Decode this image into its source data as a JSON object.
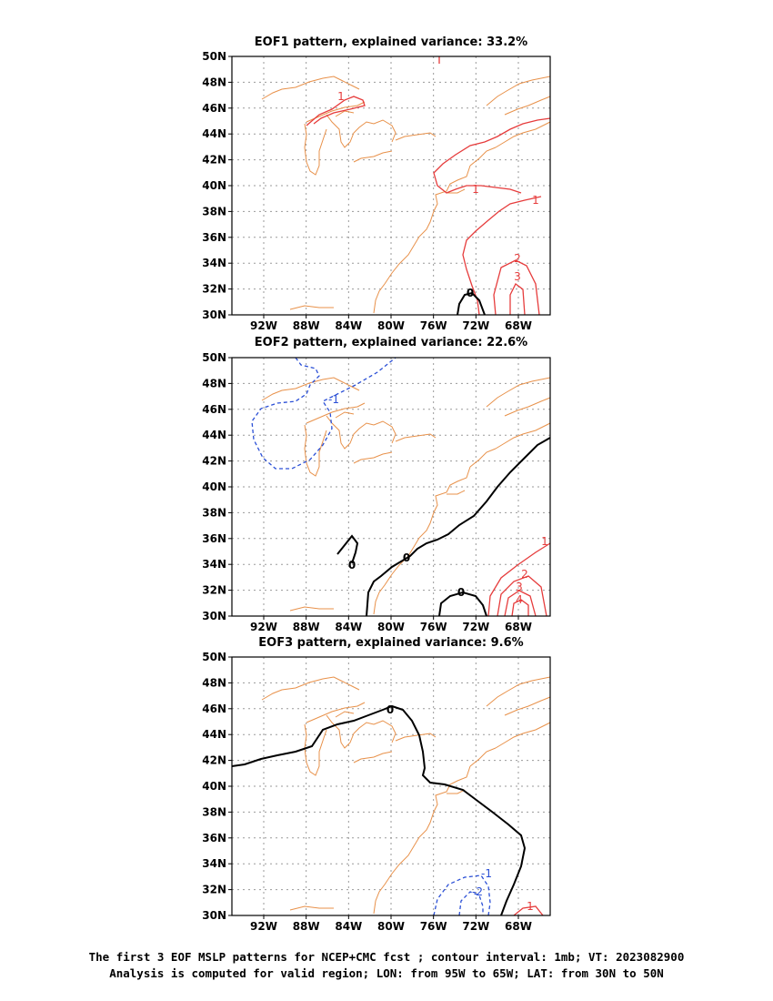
{
  "panels": [
    {
      "title": "EOF1 pattern, explained variance: 33.2%",
      "labels": [
        {
          "text": "1",
          "color": "#e63c3c"
        },
        {
          "text": "1",
          "color": "#e63c3c"
        },
        {
          "text": "1",
          "color": "#e63c3c"
        },
        {
          "text": "2",
          "color": "#e63c3c"
        },
        {
          "text": "3",
          "color": "#e63c3c"
        },
        {
          "text": "0",
          "color": "#000000"
        }
      ]
    },
    {
      "title": "EOF2 pattern, explained variance: 22.6%",
      "labels": [
        {
          "text": "-1",
          "color": "#2a4fd6"
        },
        {
          "text": "0",
          "color": "#000000"
        },
        {
          "text": "0",
          "color": "#000000"
        },
        {
          "text": "0",
          "color": "#000000"
        },
        {
          "text": "1",
          "color": "#e63c3c"
        },
        {
          "text": "2",
          "color": "#e63c3c"
        },
        {
          "text": "3",
          "color": "#e63c3c"
        },
        {
          "text": "4",
          "color": "#e63c3c"
        }
      ]
    },
    {
      "title": "EOF3 pattern, explained variance: 9.6%",
      "labels": [
        {
          "text": "0",
          "color": "#000000"
        },
        {
          "text": "-1",
          "color": "#2a4fd6"
        },
        {
          "text": "-2",
          "color": "#2a4fd6"
        },
        {
          "text": "1",
          "color": "#e63c3c"
        }
      ]
    }
  ],
  "lat_labels": [
    "50N",
    "48N",
    "46N",
    "44N",
    "42N",
    "40N",
    "38N",
    "36N",
    "34N",
    "32N",
    "30N"
  ],
  "lon_labels": [
    "92W",
    "88W",
    "84W",
    "80W",
    "76W",
    "72W",
    "68W"
  ],
  "colors": {
    "coast": "#e8914a",
    "grid": "#9a9a9a",
    "positive": "#e63c3c",
    "negative": "#2a4fd6",
    "zero": "#000000"
  },
  "caption": {
    "line1": "The first 3 EOF MSLP patterns for NCEP+CMC fcst ; contour interval: 1mb; VT: 2023082900",
    "line2": "Analysis is computed for valid region; LON: from 95W to 65W; LAT: from 30N to 50N"
  }
}
